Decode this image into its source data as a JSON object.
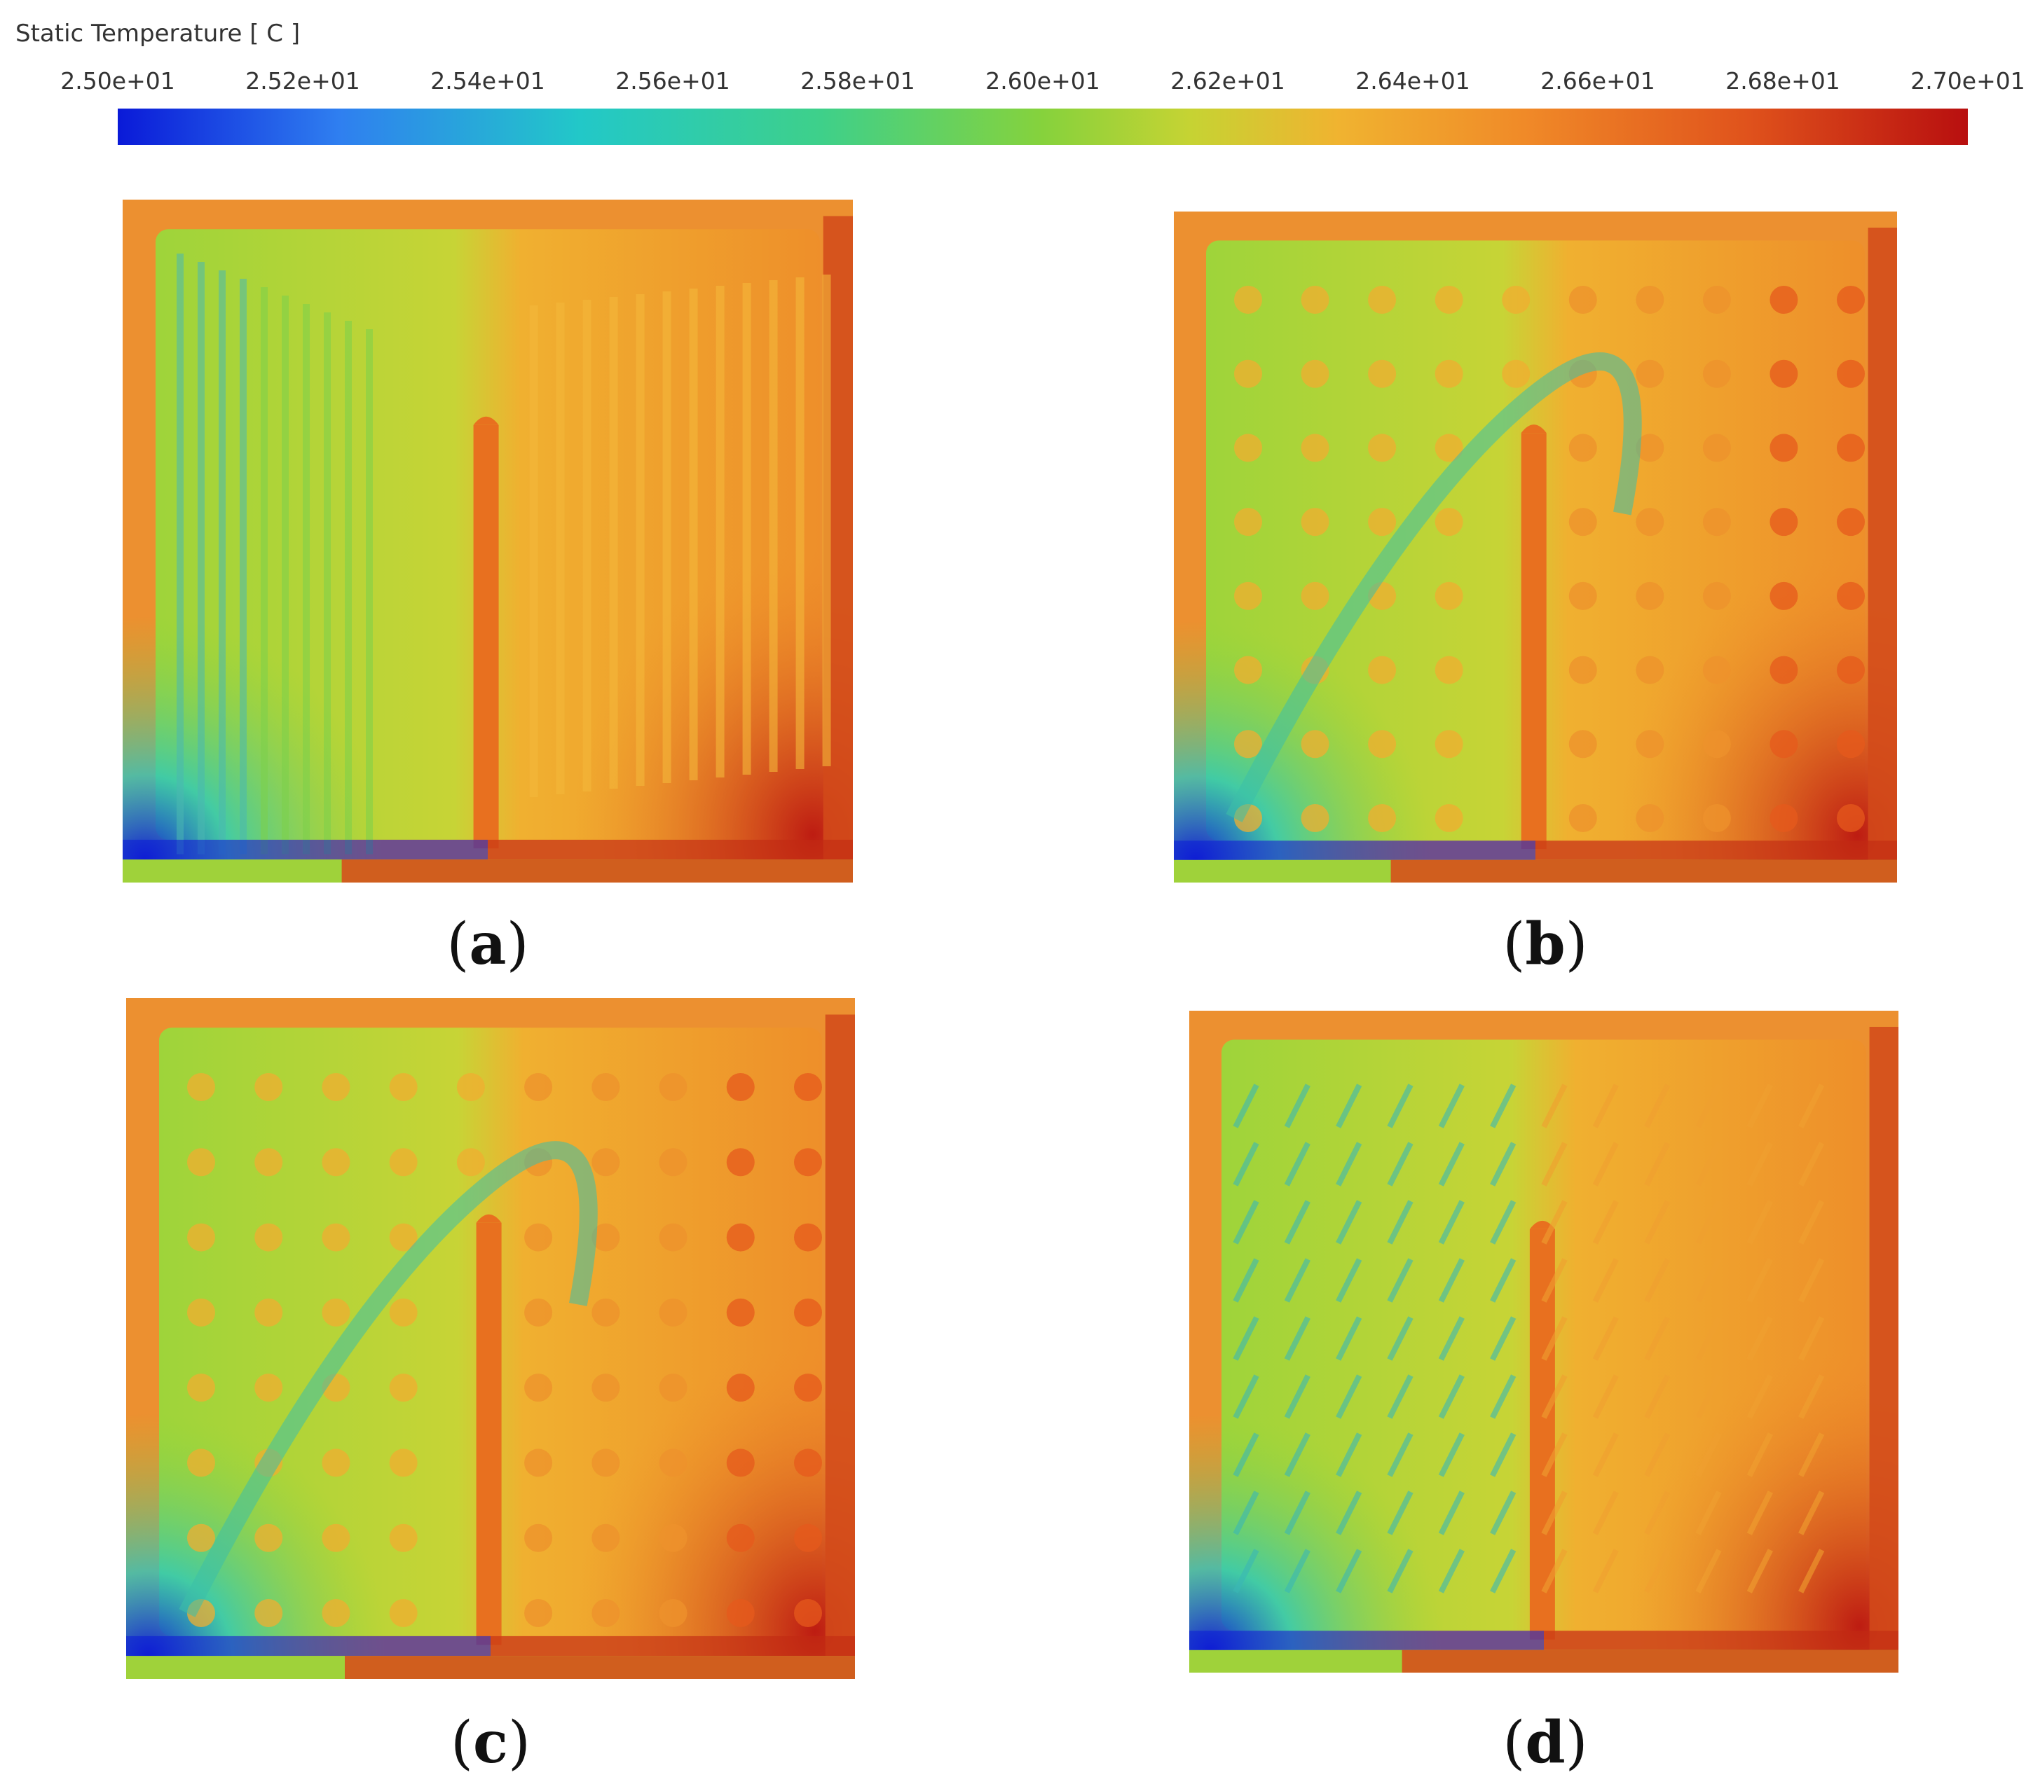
{
  "legend": {
    "title": "Static Temperature [ C ]",
    "ticks": [
      "2.50e+01",
      "2.52e+01",
      "2.54e+01",
      "2.56e+01",
      "2.58e+01",
      "2.60e+01",
      "2.62e+01",
      "2.64e+01",
      "2.66e+01",
      "2.68e+01",
      "2.70e+01"
    ],
    "colors": [
      "#0a1ad8",
      "#22c8c8",
      "#86d23c",
      "#f08a28",
      "#b80f0f"
    ]
  },
  "panels": [
    {
      "id": "a",
      "label_open": "(",
      "label": "a",
      "label_close": ")",
      "pattern": "channels"
    },
    {
      "id": "b",
      "label_open": "(",
      "label": "b",
      "label_close": ")",
      "pattern": "pins"
    },
    {
      "id": "c",
      "label_open": "(",
      "label": "c",
      "label_close": ")",
      "pattern": "pins"
    },
    {
      "id": "d",
      "label_open": "(",
      "label": "d",
      "label_close": ")",
      "pattern": "fins"
    }
  ]
}
